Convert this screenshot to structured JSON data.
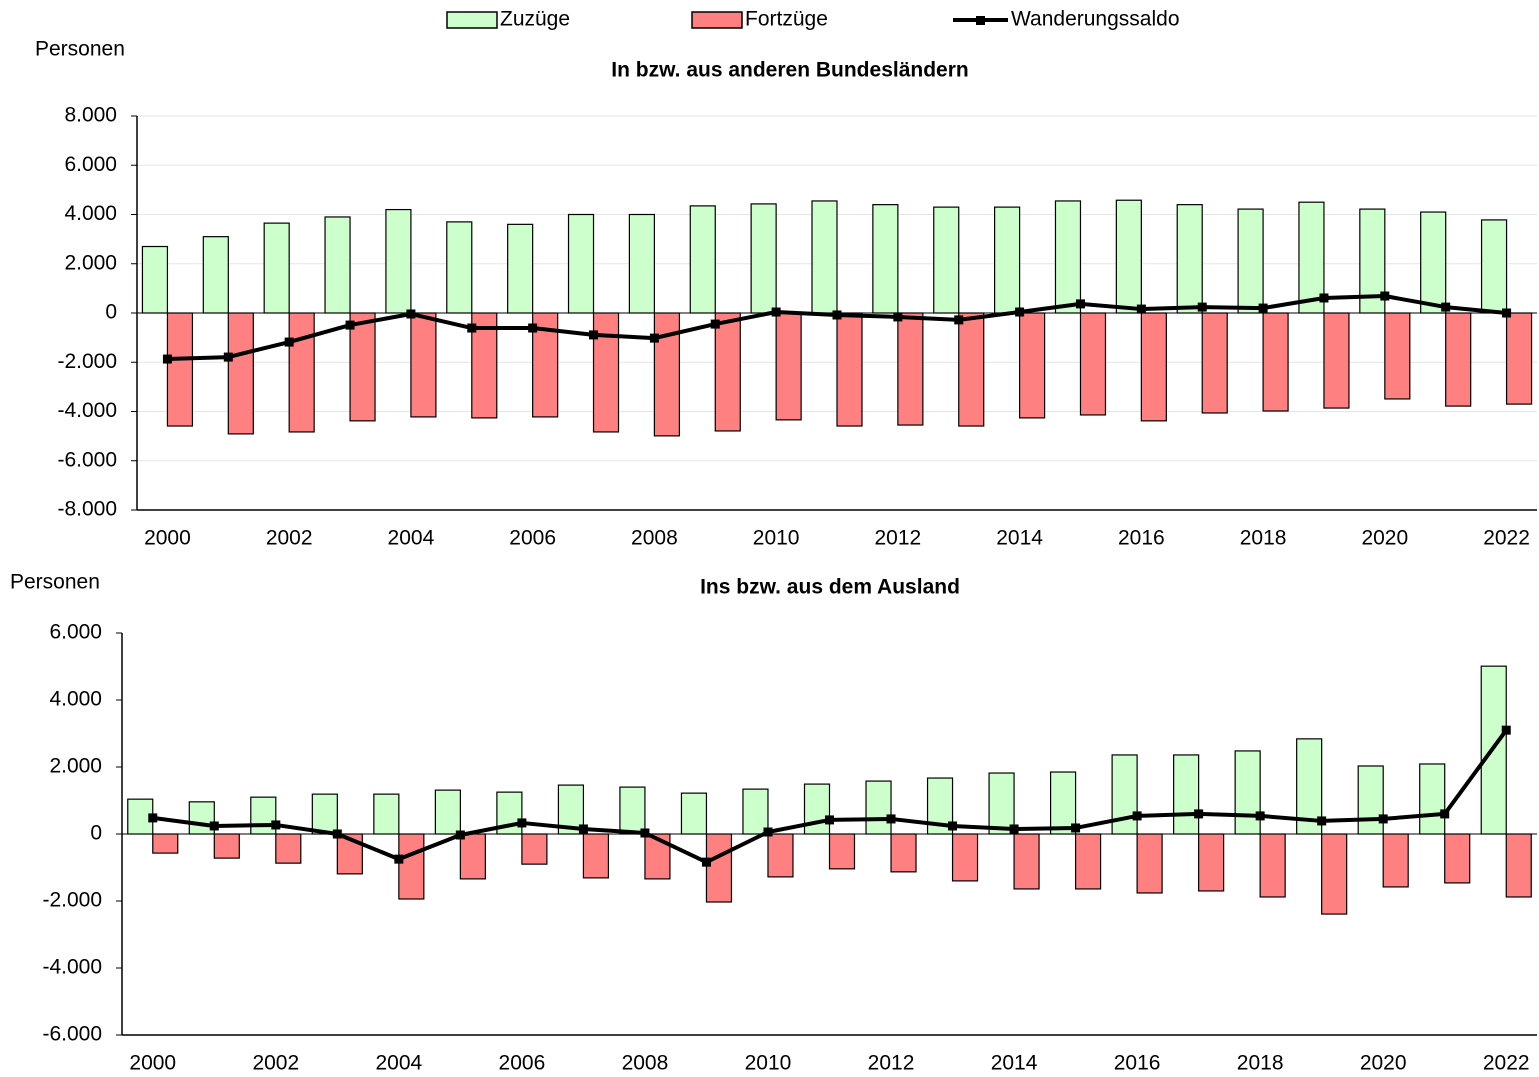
{
  "chart_data": [
    {
      "type": "bar-line",
      "title": "In bzw. aus anderen Bundesländern",
      "y_label": "Personen",
      "categories": [
        "2000",
        null,
        "2002",
        null,
        "2004",
        null,
        "2006",
        null,
        "2008",
        null,
        "2010",
        null,
        "2012",
        null,
        "2014",
        null,
        "2016",
        null,
        "2018",
        null,
        "2020",
        null,
        "2022"
      ],
      "series": [
        {
          "name": "Zuzüge",
          "color": "#ccffcc",
          "kind": "bar",
          "values": [
            2700,
            3100,
            3650,
            3900,
            4200,
            3700,
            3600,
            4000,
            4000,
            4350,
            4430,
            4550,
            4400,
            4300,
            4300,
            4550,
            4580,
            4400,
            4220,
            4500,
            4220,
            4100,
            3780
          ]
        },
        {
          "name": "Fortzüge",
          "color": "#ff8080",
          "kind": "bar",
          "values": [
            -4590,
            -4910,
            -4830,
            -4380,
            -4220,
            -4260,
            -4220,
            -4830,
            -4990,
            -4790,
            -4340,
            -4590,
            -4550,
            -4590,
            -4260,
            -4140,
            -4380,
            -4060,
            -3980,
            -3860,
            -3490,
            -3780,
            -3700
          ]
        },
        {
          "name": "Wanderungssaldo",
          "color": "#000000",
          "kind": "line",
          "values": [
            -1870,
            -1790,
            -1180,
            -490,
            -40,
            -610,
            -610,
            -890,
            -1020,
            -450,
            40,
            -80,
            -160,
            -280,
            40,
            370,
            160,
            240,
            200,
            610,
            690,
            240,
            0
          ]
        }
      ],
      "ylim": [
        -8000,
        8000
      ],
      "yticks": [
        {
          "value": -8000,
          "label": "-8.000"
        },
        {
          "value": -6000,
          "label": "-6.000"
        },
        {
          "value": -4000,
          "label": "-4.000"
        },
        {
          "value": -2000,
          "label": "-2.000"
        },
        0,
        {
          "value": 2000,
          "label": "2.000"
        },
        {
          "value": 4000,
          "label": "4.000"
        },
        {
          "value": 6000,
          "label": "6.000"
        },
        {
          "value": 8000,
          "label": "8.000"
        }
      ],
      "grid": true,
      "legend": "top"
    },
    {
      "type": "bar-line",
      "title": "Ins bzw. aus dem Ausland",
      "y_label": "Personen",
      "categories": [
        "2000",
        null,
        "2002",
        null,
        "2004",
        null,
        "2006",
        null,
        "2008",
        null,
        "2010",
        null,
        "2012",
        null,
        "2014",
        null,
        "2016",
        null,
        "2018",
        null,
        "2020",
        null,
        "2022"
      ],
      "series": [
        {
          "color": "#ccffcc",
          "kind": "bar",
          "values": [
            1040,
            960,
            1100,
            1190,
            1190,
            1310,
            1250,
            1460,
            1400,
            1220,
            1340,
            1490,
            1580,
            1670,
            1820,
            1850,
            2360,
            2360,
            2480,
            2840,
            2030,
            2090,
            5010
          ]
        },
        {
          "color": "#ff8080",
          "kind": "bar",
          "values": [
            -570,
            -720,
            -870,
            -1190,
            -1940,
            -1340,
            -900,
            -1310,
            -1340,
            -2030,
            -1280,
            -1040,
            -1130,
            -1400,
            -1640,
            -1640,
            -1760,
            -1700,
            -1880,
            -2390,
            -1580,
            -1460,
            -1880
          ]
        },
        {
          "color": "#000000",
          "kind": "line",
          "values": [
            480,
            240,
            270,
            0,
            -750,
            -30,
            330,
            150,
            30,
            -840,
            60,
            420,
            450,
            240,
            150,
            180,
            540,
            600,
            540,
            390,
            450,
            600,
            3100
          ]
        }
      ],
      "ylim": [
        -6000,
        6000
      ],
      "yticks": [
        {
          "value": -6000,
          "label": "-6.000"
        },
        {
          "value": -4000,
          "label": "-4.000"
        },
        {
          "value": -2000,
          "label": "-2.000"
        },
        0,
        {
          "value": 2000,
          "label": "2.000"
        },
        {
          "value": 4000,
          "label": "4.000"
        },
        {
          "value": 6000,
          "label": "6.000"
        }
      ],
      "grid": false
    }
  ]
}
